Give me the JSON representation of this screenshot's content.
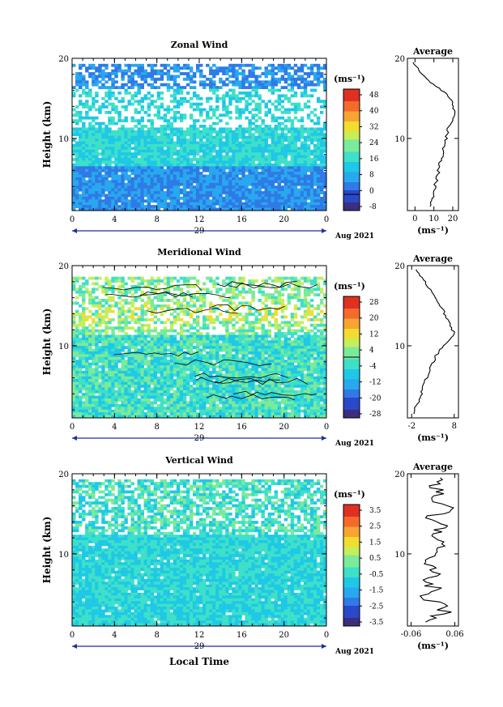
{
  "chart_data": [
    {
      "type": "heatmap",
      "title": "Zonal Wind",
      "ylabel": "Height (km)",
      "ylim": [
        1,
        20
      ],
      "xlim": [
        0,
        24
      ],
      "xticks": [
        "0",
        "4",
        "8",
        "12",
        "16",
        "20",
        "0"
      ],
      "yticks": [
        "10",
        "20"
      ],
      "day_label": "29",
      "date_label": "Aug 2021",
      "colorbar": {
        "unit": "(ms⁻¹)",
        "labels": [
          "48",
          "40",
          "32",
          "24",
          "16",
          "8",
          "0",
          "-8"
        ],
        "range": [
          -8,
          52
        ]
      },
      "profile": {
        "title": "Average",
        "xlabel": "(ms⁻¹)",
        "xticks": [
          "0",
          "10",
          "20"
        ],
        "yticks": [
          "10",
          "20"
        ],
        "xlim": [
          -4,
          23
        ],
        "height": [
          1.5,
          2.5,
          3.5,
          4.5,
          5.5,
          6.5,
          7.5,
          8.5,
          9.5,
          10.5,
          11.5,
          12.5,
          13.5,
          14.5,
          15.5,
          16.5,
          17.5,
          18.5,
          19.5
        ],
        "values": [
          8,
          9,
          10,
          11,
          12,
          13,
          14,
          15,
          16,
          17,
          18,
          20,
          21,
          20,
          17,
          11,
          6,
          2,
          -1
        ]
      }
    },
    {
      "type": "heatmap",
      "title": "Meridional Wind",
      "ylabel": "Height (km)",
      "ylim": [
        1,
        20
      ],
      "xlim": [
        0,
        24
      ],
      "xticks": [
        "0",
        "4",
        "8",
        "12",
        "16",
        "20",
        "0"
      ],
      "yticks": [
        "10",
        "20"
      ],
      "day_label": "29",
      "date_label": "Aug 2021",
      "colorbar": {
        "unit": "(ms⁻¹)",
        "labels": [
          "28",
          "20",
          "12",
          "4",
          "-4",
          "-12",
          "-20",
          "-28"
        ],
        "range": [
          -32,
          32
        ]
      },
      "profile": {
        "title": "Average",
        "xlabel": "(ms⁻¹)",
        "xticks": [
          "-2",
          "8"
        ],
        "yticks": [
          "10",
          "20"
        ],
        "xlim": [
          -3,
          9
        ],
        "height": [
          1.5,
          2.5,
          3.5,
          4.5,
          5.5,
          6.5,
          7.5,
          8.5,
          9.5,
          10.5,
          11.5,
          12.5,
          13.5,
          14.5,
          15.5,
          16.5,
          17.5,
          18.5,
          19.5
        ],
        "values": [
          -1.5,
          -1,
          0,
          0.5,
          1,
          2,
          2.5,
          3.5,
          4.5,
          6.5,
          8,
          7,
          6,
          5.5,
          4,
          3,
          1.5,
          0.5,
          -1
        ]
      }
    },
    {
      "type": "heatmap",
      "title": "Vertical Wind",
      "ylabel": "Height (km)",
      "xlabel": "Local Time",
      "ylim": [
        1,
        20
      ],
      "xlim": [
        0,
        24
      ],
      "xticks": [
        "0",
        "4",
        "8",
        "12",
        "16",
        "20",
        "0"
      ],
      "yticks": [
        "10",
        "20"
      ],
      "day_label": "29",
      "date_label": "Aug 2021",
      "colorbar": {
        "unit": "(ms⁻¹)",
        "labels": [
          "3.5",
          "2.5",
          "1.5",
          "0.5",
          "-0.5",
          "-1.5",
          "-2.5",
          "-3.5"
        ],
        "range": [
          -4,
          4
        ]
      },
      "profile": {
        "title": "Average",
        "xlabel": "(ms⁻¹)",
        "xticks": [
          "-0.06",
          "0.06"
        ],
        "yticks": [
          "10",
          "20"
        ],
        "xlim": [
          -0.07,
          0.07
        ],
        "height": [
          1.5,
          2.5,
          3.5,
          4.5,
          5.5,
          6.5,
          7.5,
          8.5,
          9.5,
          10.5,
          11.5,
          12.5,
          13.5,
          14.5,
          15.5,
          16.5,
          17.5,
          18.5,
          19.5
        ],
        "values": [
          -0.02,
          0.03,
          0.04,
          -0.03,
          0.01,
          -0.02,
          0.02,
          0.0,
          -0.01,
          0.01,
          0.03,
          0.0,
          0.04,
          -0.02,
          0.05,
          0.0,
          0.03,
          -0.01,
          0.02
        ]
      }
    }
  ]
}
